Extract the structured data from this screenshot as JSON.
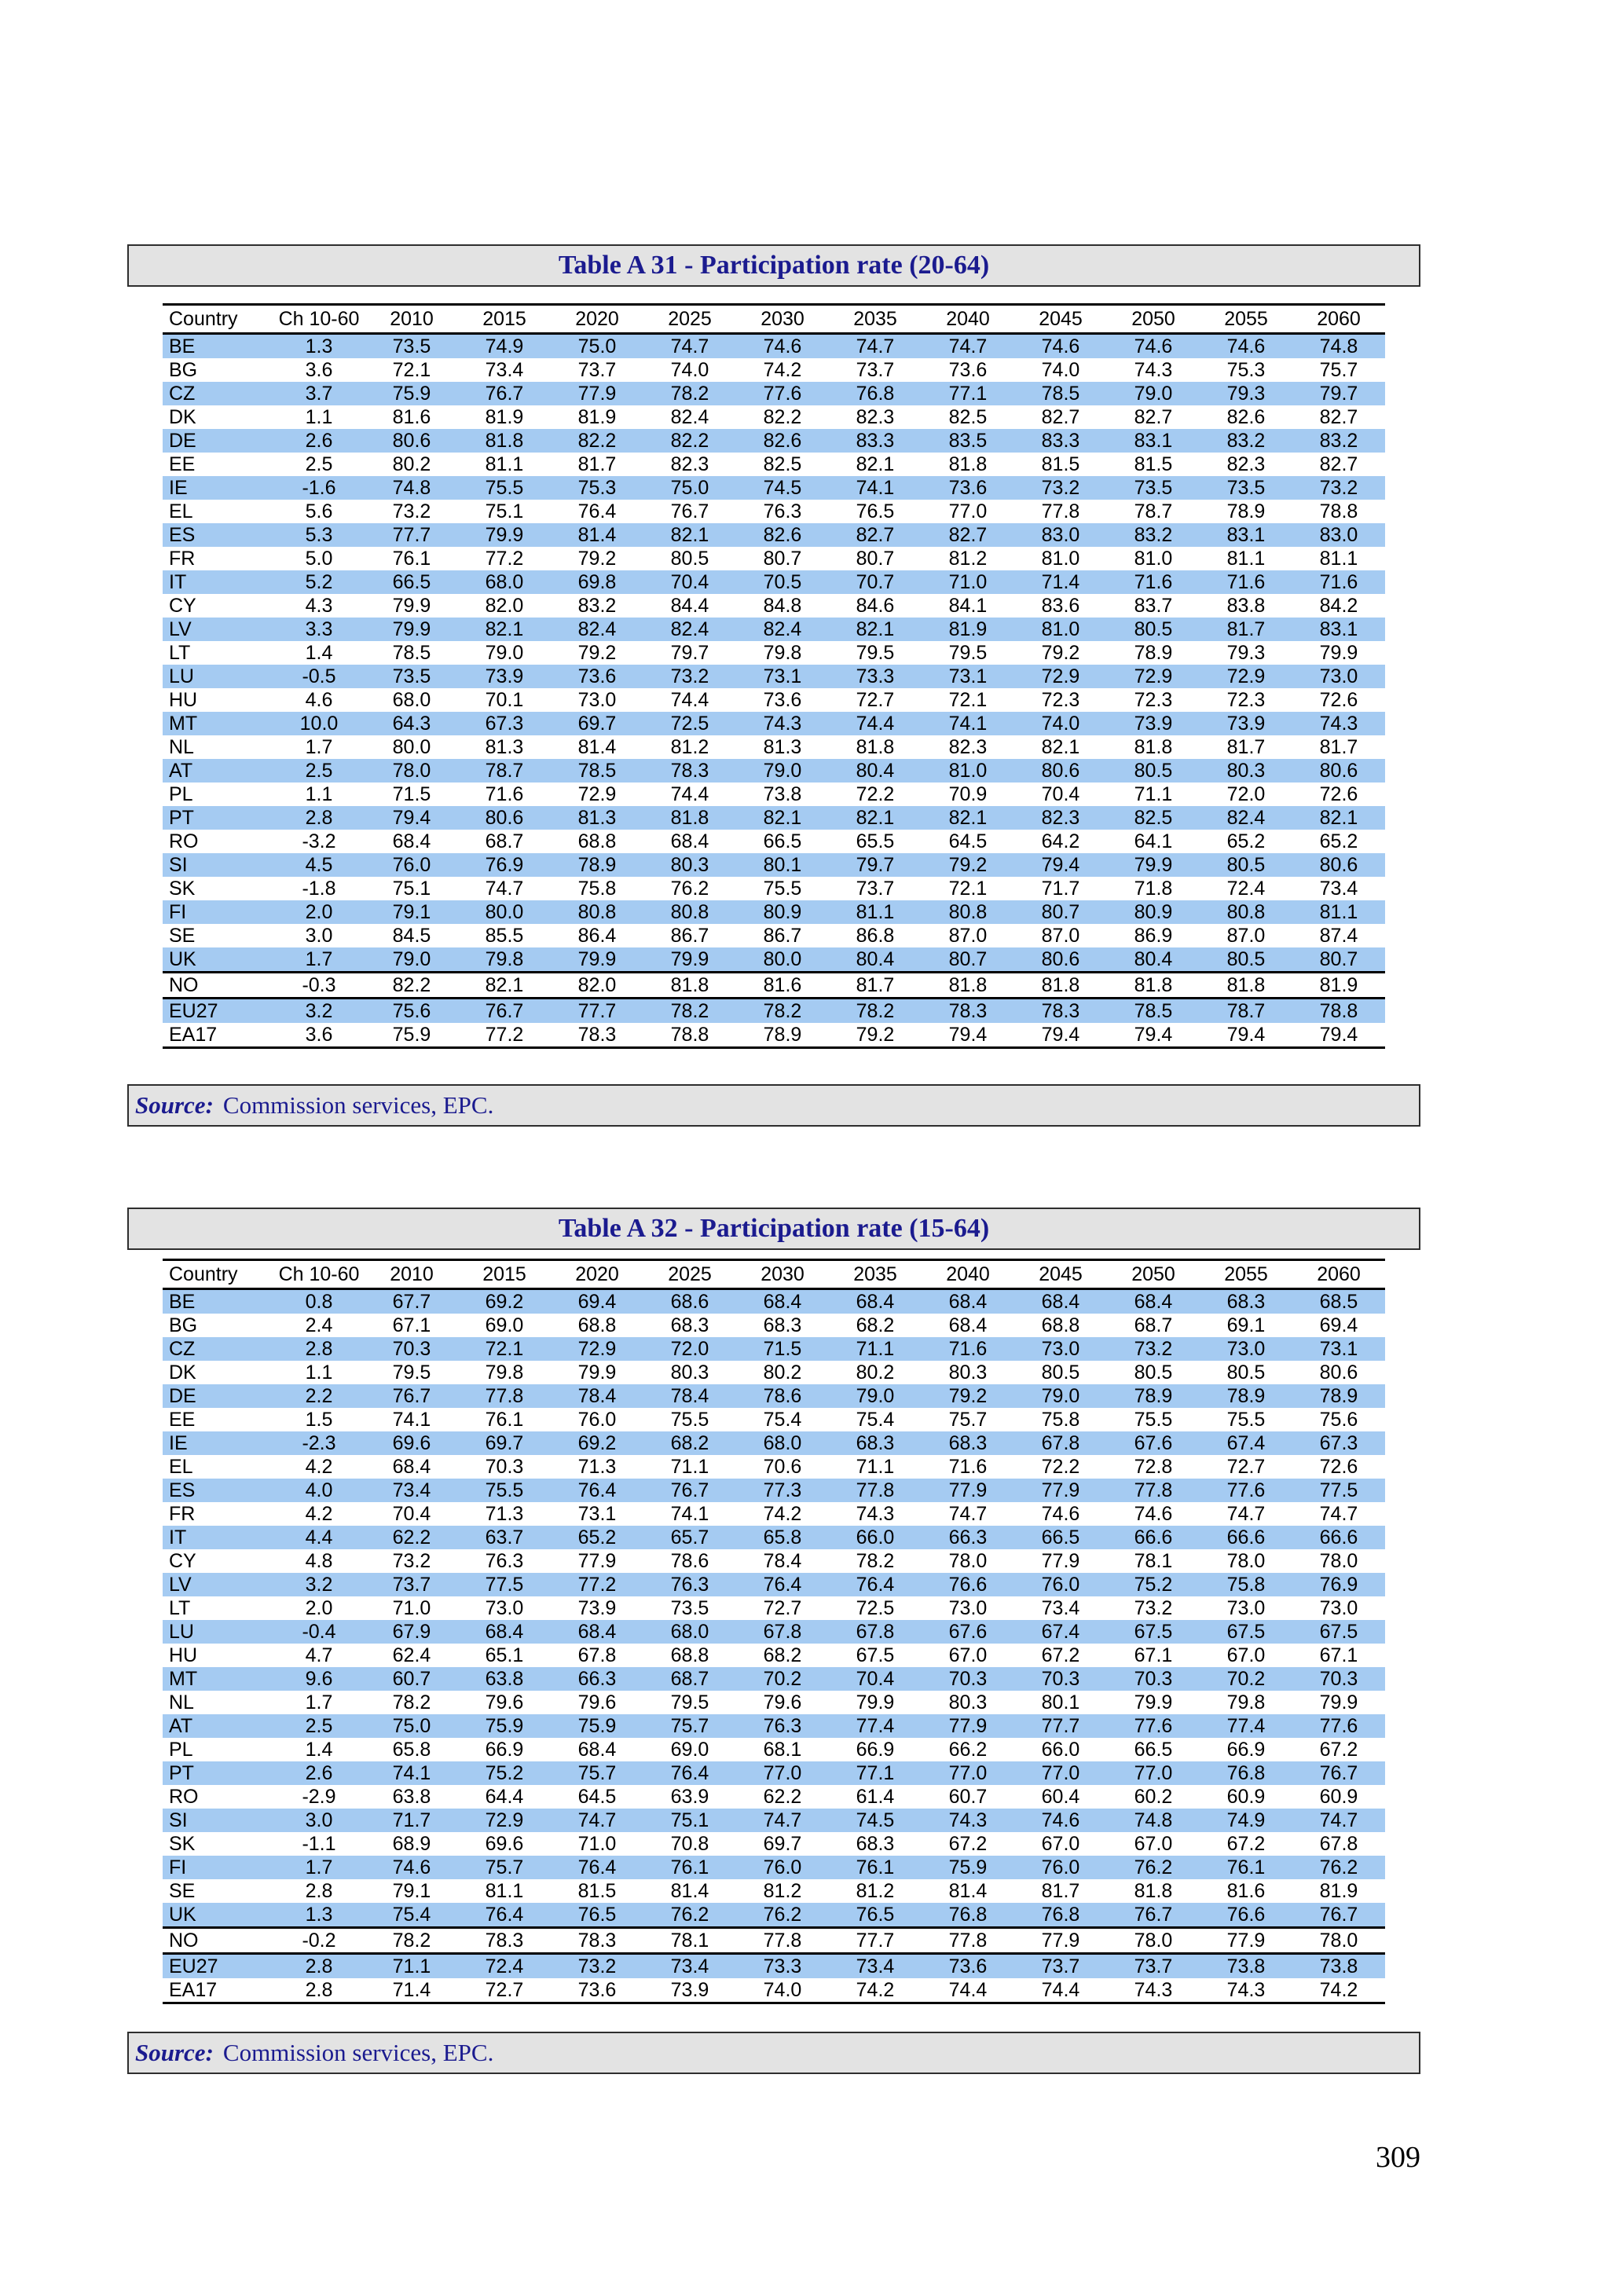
{
  "page": {
    "number": "309"
  },
  "colors": {
    "title_text": "#1b1b8f",
    "bar_background": "#e3e3e3",
    "bar_border": "#2e2e2e",
    "row_highlight": "#a5cbf2",
    "table_text": "#000000"
  },
  "tables": [
    {
      "title": "Table A 31 - Participation rate (20-64)",
      "source_label": "Source:",
      "source_text": "Commission services, EPC.",
      "columns": [
        "Country",
        "Ch 10-60",
        "2010",
        "2015",
        "2020",
        "2025",
        "2030",
        "2035",
        "2040",
        "2045",
        "2050",
        "2055",
        "2060"
      ],
      "separator_before": [
        "NO",
        "EU27"
      ],
      "rows": [
        [
          "BE",
          "1.3",
          "73.5",
          "74.9",
          "75.0",
          "74.7",
          "74.6",
          "74.7",
          "74.7",
          "74.6",
          "74.6",
          "74.6",
          "74.8"
        ],
        [
          "BG",
          "3.6",
          "72.1",
          "73.4",
          "73.7",
          "74.0",
          "74.2",
          "73.7",
          "73.6",
          "74.0",
          "74.3",
          "75.3",
          "75.7"
        ],
        [
          "CZ",
          "3.7",
          "75.9",
          "76.7",
          "77.9",
          "78.2",
          "77.6",
          "76.8",
          "77.1",
          "78.5",
          "79.0",
          "79.3",
          "79.7"
        ],
        [
          "DK",
          "1.1",
          "81.6",
          "81.9",
          "81.9",
          "82.4",
          "82.2",
          "82.3",
          "82.5",
          "82.7",
          "82.7",
          "82.6",
          "82.7"
        ],
        [
          "DE",
          "2.6",
          "80.6",
          "81.8",
          "82.2",
          "82.2",
          "82.6",
          "83.3",
          "83.5",
          "83.3",
          "83.1",
          "83.2",
          "83.2"
        ],
        [
          "EE",
          "2.5",
          "80.2",
          "81.1",
          "81.7",
          "82.3",
          "82.5",
          "82.1",
          "81.8",
          "81.5",
          "81.5",
          "82.3",
          "82.7"
        ],
        [
          "IE",
          "-1.6",
          "74.8",
          "75.5",
          "75.3",
          "75.0",
          "74.5",
          "74.1",
          "73.6",
          "73.2",
          "73.5",
          "73.5",
          "73.2"
        ],
        [
          "EL",
          "5.6",
          "73.2",
          "75.1",
          "76.4",
          "76.7",
          "76.3",
          "76.5",
          "77.0",
          "77.8",
          "78.7",
          "78.9",
          "78.8"
        ],
        [
          "ES",
          "5.3",
          "77.7",
          "79.9",
          "81.4",
          "82.1",
          "82.6",
          "82.7",
          "82.7",
          "83.0",
          "83.2",
          "83.1",
          "83.0"
        ],
        [
          "FR",
          "5.0",
          "76.1",
          "77.2",
          "79.2",
          "80.5",
          "80.7",
          "80.7",
          "81.2",
          "81.0",
          "81.0",
          "81.1",
          "81.1"
        ],
        [
          "IT",
          "5.2",
          "66.5",
          "68.0",
          "69.8",
          "70.4",
          "70.5",
          "70.7",
          "71.0",
          "71.4",
          "71.6",
          "71.6",
          "71.6"
        ],
        [
          "CY",
          "4.3",
          "79.9",
          "82.0",
          "83.2",
          "84.4",
          "84.8",
          "84.6",
          "84.1",
          "83.6",
          "83.7",
          "83.8",
          "84.2"
        ],
        [
          "LV",
          "3.3",
          "79.9",
          "82.1",
          "82.4",
          "82.4",
          "82.4",
          "82.1",
          "81.9",
          "81.0",
          "80.5",
          "81.7",
          "83.1"
        ],
        [
          "LT",
          "1.4",
          "78.5",
          "79.0",
          "79.2",
          "79.7",
          "79.8",
          "79.5",
          "79.5",
          "79.2",
          "78.9",
          "79.3",
          "79.9"
        ],
        [
          "LU",
          "-0.5",
          "73.5",
          "73.9",
          "73.6",
          "73.2",
          "73.1",
          "73.3",
          "73.1",
          "72.9",
          "72.9",
          "72.9",
          "73.0"
        ],
        [
          "HU",
          "4.6",
          "68.0",
          "70.1",
          "73.0",
          "74.4",
          "73.6",
          "72.7",
          "72.1",
          "72.3",
          "72.3",
          "72.3",
          "72.6"
        ],
        [
          "MT",
          "10.0",
          "64.3",
          "67.3",
          "69.7",
          "72.5",
          "74.3",
          "74.4",
          "74.1",
          "74.0",
          "73.9",
          "73.9",
          "74.3"
        ],
        [
          "NL",
          "1.7",
          "80.0",
          "81.3",
          "81.4",
          "81.2",
          "81.3",
          "81.8",
          "82.3",
          "82.1",
          "81.8",
          "81.7",
          "81.7"
        ],
        [
          "AT",
          "2.5",
          "78.0",
          "78.7",
          "78.5",
          "78.3",
          "79.0",
          "80.4",
          "81.0",
          "80.6",
          "80.5",
          "80.3",
          "80.6"
        ],
        [
          "PL",
          "1.1",
          "71.5",
          "71.6",
          "72.9",
          "74.4",
          "73.8",
          "72.2",
          "70.9",
          "70.4",
          "71.1",
          "72.0",
          "72.6"
        ],
        [
          "PT",
          "2.8",
          "79.4",
          "80.6",
          "81.3",
          "81.8",
          "82.1",
          "82.1",
          "82.1",
          "82.3",
          "82.5",
          "82.4",
          "82.1"
        ],
        [
          "RO",
          "-3.2",
          "68.4",
          "68.7",
          "68.8",
          "68.4",
          "66.5",
          "65.5",
          "64.5",
          "64.2",
          "64.1",
          "65.2",
          "65.2"
        ],
        [
          "SI",
          "4.5",
          "76.0",
          "76.9",
          "78.9",
          "80.3",
          "80.1",
          "79.7",
          "79.2",
          "79.4",
          "79.9",
          "80.5",
          "80.6"
        ],
        [
          "SK",
          "-1.8",
          "75.1",
          "74.7",
          "75.8",
          "76.2",
          "75.5",
          "73.7",
          "72.1",
          "71.7",
          "71.8",
          "72.4",
          "73.4"
        ],
        [
          "FI",
          "2.0",
          "79.1",
          "80.0",
          "80.8",
          "80.8",
          "80.9",
          "81.1",
          "80.8",
          "80.7",
          "80.9",
          "80.8",
          "81.1"
        ],
        [
          "SE",
          "3.0",
          "84.5",
          "85.5",
          "86.4",
          "86.7",
          "86.7",
          "86.8",
          "87.0",
          "87.0",
          "86.9",
          "87.0",
          "87.4"
        ],
        [
          "UK",
          "1.7",
          "79.0",
          "79.8",
          "79.9",
          "79.9",
          "80.0",
          "80.4",
          "80.7",
          "80.6",
          "80.4",
          "80.5",
          "80.7"
        ],
        [
          "NO",
          "-0.3",
          "82.2",
          "82.1",
          "82.0",
          "81.8",
          "81.6",
          "81.7",
          "81.8",
          "81.8",
          "81.8",
          "81.8",
          "81.9"
        ],
        [
          "EU27",
          "3.2",
          "75.6",
          "76.7",
          "77.7",
          "78.2",
          "78.2",
          "78.2",
          "78.3",
          "78.3",
          "78.5",
          "78.7",
          "78.8"
        ],
        [
          "EA17",
          "3.6",
          "75.9",
          "77.2",
          "78.3",
          "78.8",
          "78.9",
          "79.2",
          "79.4",
          "79.4",
          "79.4",
          "79.4",
          "79.4"
        ]
      ]
    },
    {
      "title": "Table A 32 - Participation rate (15-64)",
      "source_label": "Source:",
      "source_text": "Commission services, EPC.",
      "columns": [
        "Country",
        "Ch 10-60",
        "2010",
        "2015",
        "2020",
        "2025",
        "2030",
        "2035",
        "2040",
        "2045",
        "2050",
        "2055",
        "2060"
      ],
      "separator_before": [
        "NO",
        "EU27"
      ],
      "rows": [
        [
          "BE",
          "0.8",
          "67.7",
          "69.2",
          "69.4",
          "68.6",
          "68.4",
          "68.4",
          "68.4",
          "68.4",
          "68.4",
          "68.3",
          "68.5"
        ],
        [
          "BG",
          "2.4",
          "67.1",
          "69.0",
          "68.8",
          "68.3",
          "68.3",
          "68.2",
          "68.4",
          "68.8",
          "68.7",
          "69.1",
          "69.4"
        ],
        [
          "CZ",
          "2.8",
          "70.3",
          "72.1",
          "72.9",
          "72.0",
          "71.5",
          "71.1",
          "71.6",
          "73.0",
          "73.2",
          "73.0",
          "73.1"
        ],
        [
          "DK",
          "1.1",
          "79.5",
          "79.8",
          "79.9",
          "80.3",
          "80.2",
          "80.2",
          "80.3",
          "80.5",
          "80.5",
          "80.5",
          "80.6"
        ],
        [
          "DE",
          "2.2",
          "76.7",
          "77.8",
          "78.4",
          "78.4",
          "78.6",
          "79.0",
          "79.2",
          "79.0",
          "78.9",
          "78.9",
          "78.9"
        ],
        [
          "EE",
          "1.5",
          "74.1",
          "76.1",
          "76.0",
          "75.5",
          "75.4",
          "75.4",
          "75.7",
          "75.8",
          "75.5",
          "75.5",
          "75.6"
        ],
        [
          "IE",
          "-2.3",
          "69.6",
          "69.7",
          "69.2",
          "68.2",
          "68.0",
          "68.3",
          "68.3",
          "67.8",
          "67.6",
          "67.4",
          "67.3"
        ],
        [
          "EL",
          "4.2",
          "68.4",
          "70.3",
          "71.3",
          "71.1",
          "70.6",
          "71.1",
          "71.6",
          "72.2",
          "72.8",
          "72.7",
          "72.6"
        ],
        [
          "ES",
          "4.0",
          "73.4",
          "75.5",
          "76.4",
          "76.7",
          "77.3",
          "77.8",
          "77.9",
          "77.9",
          "77.8",
          "77.6",
          "77.5"
        ],
        [
          "FR",
          "4.2",
          "70.4",
          "71.3",
          "73.1",
          "74.1",
          "74.2",
          "74.3",
          "74.7",
          "74.6",
          "74.6",
          "74.7",
          "74.7"
        ],
        [
          "IT",
          "4.4",
          "62.2",
          "63.7",
          "65.2",
          "65.7",
          "65.8",
          "66.0",
          "66.3",
          "66.5",
          "66.6",
          "66.6",
          "66.6"
        ],
        [
          "CY",
          "4.8",
          "73.2",
          "76.3",
          "77.9",
          "78.6",
          "78.4",
          "78.2",
          "78.0",
          "77.9",
          "78.1",
          "78.0",
          "78.0"
        ],
        [
          "LV",
          "3.2",
          "73.7",
          "77.5",
          "77.2",
          "76.3",
          "76.4",
          "76.4",
          "76.6",
          "76.0",
          "75.2",
          "75.8",
          "76.9"
        ],
        [
          "LT",
          "2.0",
          "71.0",
          "73.0",
          "73.9",
          "73.5",
          "72.7",
          "72.5",
          "73.0",
          "73.4",
          "73.2",
          "73.0",
          "73.0"
        ],
        [
          "LU",
          "-0.4",
          "67.9",
          "68.4",
          "68.4",
          "68.0",
          "67.8",
          "67.8",
          "67.6",
          "67.4",
          "67.5",
          "67.5",
          "67.5"
        ],
        [
          "HU",
          "4.7",
          "62.4",
          "65.1",
          "67.8",
          "68.8",
          "68.2",
          "67.5",
          "67.0",
          "67.2",
          "67.1",
          "67.0",
          "67.1"
        ],
        [
          "MT",
          "9.6",
          "60.7",
          "63.8",
          "66.3",
          "68.7",
          "70.2",
          "70.4",
          "70.3",
          "70.3",
          "70.3",
          "70.2",
          "70.3"
        ],
        [
          "NL",
          "1.7",
          "78.2",
          "79.6",
          "79.6",
          "79.5",
          "79.6",
          "79.9",
          "80.3",
          "80.1",
          "79.9",
          "79.8",
          "79.9"
        ],
        [
          "AT",
          "2.5",
          "75.0",
          "75.9",
          "75.9",
          "75.7",
          "76.3",
          "77.4",
          "77.9",
          "77.7",
          "77.6",
          "77.4",
          "77.6"
        ],
        [
          "PL",
          "1.4",
          "65.8",
          "66.9",
          "68.4",
          "69.0",
          "68.1",
          "66.9",
          "66.2",
          "66.0",
          "66.5",
          "66.9",
          "67.2"
        ],
        [
          "PT",
          "2.6",
          "74.1",
          "75.2",
          "75.7",
          "76.4",
          "77.0",
          "77.1",
          "77.0",
          "77.0",
          "77.0",
          "76.8",
          "76.7"
        ],
        [
          "RO",
          "-2.9",
          "63.8",
          "64.4",
          "64.5",
          "63.9",
          "62.2",
          "61.4",
          "60.7",
          "60.4",
          "60.2",
          "60.9",
          "60.9"
        ],
        [
          "SI",
          "3.0",
          "71.7",
          "72.9",
          "74.7",
          "75.1",
          "74.7",
          "74.5",
          "74.3",
          "74.6",
          "74.8",
          "74.9",
          "74.7"
        ],
        [
          "SK",
          "-1.1",
          "68.9",
          "69.6",
          "71.0",
          "70.8",
          "69.7",
          "68.3",
          "67.2",
          "67.0",
          "67.0",
          "67.2",
          "67.8"
        ],
        [
          "FI",
          "1.7",
          "74.6",
          "75.7",
          "76.4",
          "76.1",
          "76.0",
          "76.1",
          "75.9",
          "76.0",
          "76.2",
          "76.1",
          "76.2"
        ],
        [
          "SE",
          "2.8",
          "79.1",
          "81.1",
          "81.5",
          "81.4",
          "81.2",
          "81.2",
          "81.4",
          "81.7",
          "81.8",
          "81.6",
          "81.9"
        ],
        [
          "UK",
          "1.3",
          "75.4",
          "76.4",
          "76.5",
          "76.2",
          "76.2",
          "76.5",
          "76.8",
          "76.8",
          "76.7",
          "76.6",
          "76.7"
        ],
        [
          "NO",
          "-0.2",
          "78.2",
          "78.3",
          "78.3",
          "78.1",
          "77.8",
          "77.7",
          "77.8",
          "77.9",
          "78.0",
          "77.9",
          "78.0"
        ],
        [
          "EU27",
          "2.8",
          "71.1",
          "72.4",
          "73.2",
          "73.4",
          "73.3",
          "73.4",
          "73.6",
          "73.7",
          "73.7",
          "73.8",
          "73.8"
        ],
        [
          "EA17",
          "2.8",
          "71.4",
          "72.7",
          "73.6",
          "73.9",
          "74.0",
          "74.2",
          "74.4",
          "74.4",
          "74.3",
          "74.3",
          "74.2"
        ]
      ]
    }
  ]
}
